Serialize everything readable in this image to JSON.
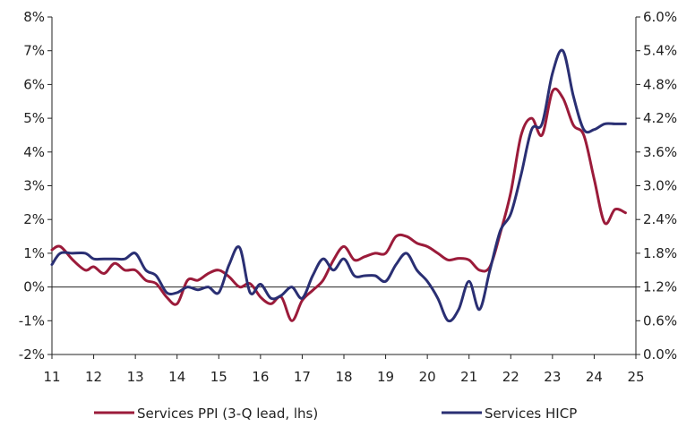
{
  "chart_data": {
    "type": "line",
    "x_ticks": [
      "11",
      "12",
      "13",
      "14",
      "15",
      "16",
      "17",
      "18",
      "19",
      "20",
      "21",
      "22",
      "23",
      "24",
      "25"
    ],
    "y_left_ticks": [
      "-2%",
      "-1%",
      "0%",
      "1%",
      "2%",
      "3%",
      "4%",
      "5%",
      "6%",
      "7%",
      "8%"
    ],
    "y_right_ticks": [
      "0.0%",
      "0.6%",
      "1.2%",
      "1.8%",
      "2.4%",
      "3.0%",
      "3.6%",
      "4.2%",
      "4.8%",
      "5.4%",
      "6.0%"
    ],
    "ylim_left": [
      -2,
      8
    ],
    "ylim_right": [
      0,
      6
    ],
    "xlim": [
      2011,
      2025
    ],
    "grid": false,
    "legend_position": "bottom",
    "series": [
      {
        "name": "Services PPI (3-Q lead, lhs)",
        "axis": "left",
        "color": "#9b1b3a",
        "x": [
          2011.0,
          2011.2,
          2011.5,
          2011.8,
          2012.0,
          2012.25,
          2012.5,
          2012.75,
          2013.0,
          2013.25,
          2013.5,
          2013.75,
          2014.0,
          2014.25,
          2014.5,
          2014.75,
          2015.0,
          2015.25,
          2015.5,
          2015.75,
          2016.0,
          2016.25,
          2016.5,
          2016.75,
          2017.0,
          2017.25,
          2017.5,
          2017.75,
          2018.0,
          2018.25,
          2018.5,
          2018.75,
          2019.0,
          2019.25,
          2019.5,
          2019.75,
          2020.0,
          2020.25,
          2020.5,
          2020.75,
          2021.0,
          2021.25,
          2021.5,
          2021.75,
          2022.0,
          2022.25,
          2022.5,
          2022.75,
          2023.0,
          2023.25,
          2023.5,
          2023.75,
          2024.0,
          2024.25,
          2024.5,
          2024.75
        ],
        "values": [
          1.1,
          1.2,
          0.8,
          0.5,
          0.6,
          0.4,
          0.7,
          0.5,
          0.5,
          0.2,
          0.1,
          -0.3,
          -0.5,
          0.2,
          0.2,
          0.4,
          0.5,
          0.3,
          0.0,
          0.1,
          -0.3,
          -0.5,
          -0.3,
          -1.0,
          -0.4,
          -0.1,
          0.2,
          0.8,
          1.2,
          0.8,
          0.9,
          1.0,
          1.0,
          1.5,
          1.5,
          1.3,
          1.2,
          1.0,
          0.8,
          0.85,
          0.8,
          0.5,
          0.6,
          1.6,
          2.8,
          4.5,
          5.0,
          4.5,
          5.8,
          5.6,
          4.8,
          4.5,
          3.2,
          1.9,
          2.3,
          2.2
        ]
      },
      {
        "name": "Services HICP",
        "axis": "right",
        "color": "#2a2f73",
        "x": [
          2011.0,
          2011.2,
          2011.5,
          2011.8,
          2012.0,
          2012.25,
          2012.5,
          2012.75,
          2013.0,
          2013.25,
          2013.5,
          2013.75,
          2014.0,
          2014.25,
          2014.5,
          2014.75,
          2015.0,
          2015.25,
          2015.5,
          2015.75,
          2016.0,
          2016.25,
          2016.5,
          2016.75,
          2017.0,
          2017.25,
          2017.5,
          2017.75,
          2018.0,
          2018.25,
          2018.5,
          2018.75,
          2019.0,
          2019.25,
          2019.5,
          2019.75,
          2020.0,
          2020.25,
          2020.5,
          2020.75,
          2021.0,
          2021.25,
          2021.5,
          2021.75,
          2022.0,
          2022.25,
          2022.5,
          2022.75,
          2023.0,
          2023.25,
          2023.5,
          2023.75,
          2024.0,
          2024.25,
          2024.5,
          2024.75
        ],
        "values": [
          1.6,
          1.8,
          1.8,
          1.8,
          1.7,
          1.7,
          1.7,
          1.7,
          1.8,
          1.5,
          1.4,
          1.1,
          1.1,
          1.2,
          1.15,
          1.2,
          1.1,
          1.6,
          1.9,
          1.1,
          1.25,
          1.0,
          1.05,
          1.2,
          1.0,
          1.4,
          1.7,
          1.5,
          1.7,
          1.4,
          1.4,
          1.4,
          1.3,
          1.6,
          1.8,
          1.5,
          1.3,
          1.0,
          0.6,
          0.8,
          1.3,
          0.8,
          1.5,
          2.2,
          2.5,
          3.2,
          4.0,
          4.1,
          5.0,
          5.4,
          4.6,
          4.0,
          4.0,
          4.1,
          4.1,
          4.1
        ]
      }
    ]
  }
}
